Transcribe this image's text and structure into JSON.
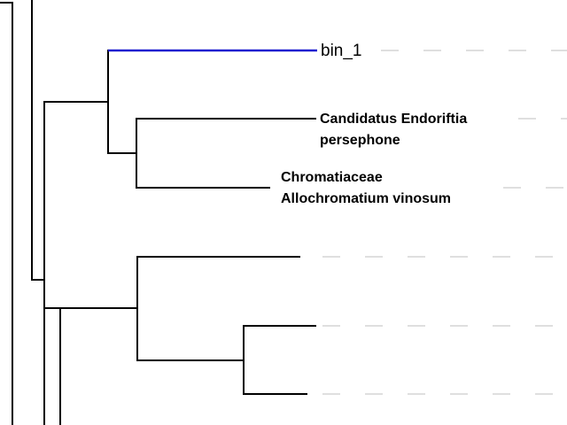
{
  "tree": {
    "colors": {
      "branch": "#000000",
      "highlight": "#1f1fd0",
      "guide": "#bfbfbf"
    },
    "leaves": [
      {
        "id": "bin1",
        "lines": [
          "bin_1"
        ],
        "highlighted": true,
        "bold": false
      },
      {
        "id": "endoriftia",
        "lines": [
          "Candidatus Endoriftia",
          "persephone"
        ],
        "highlighted": false,
        "bold": true
      },
      {
        "id": "allochromatium",
        "lines": [
          "Chromatiaceae",
          "Allochromatium vinosum"
        ],
        "highlighted": false,
        "bold": true
      },
      {
        "id": "leaf4",
        "lines": [],
        "highlighted": false,
        "bold": false
      },
      {
        "id": "leaf5",
        "lines": [],
        "highlighted": false,
        "bold": false
      },
      {
        "id": "leaf6",
        "lines": [],
        "highlighted": false,
        "bold": false
      }
    ]
  }
}
